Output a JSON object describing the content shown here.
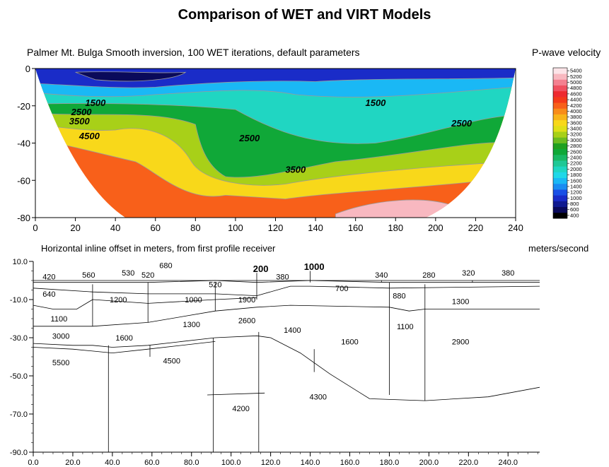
{
  "figure_title": "Comparison of WET and VIRT Models",
  "chart_data": [
    {
      "type": "heatmap",
      "title": "Palmer Mt. Bulga Smooth inversion, 100 WET iterations, default parameters",
      "xlabel": "Horizontal inline offset in meters, from first profile receiver",
      "ylabel": "",
      "xlim": [
        0,
        240
      ],
      "ylim": [
        -80,
        0
      ],
      "x_ticks": [
        "0",
        "20",
        "40",
        "60",
        "80",
        "100",
        "120",
        "140",
        "160",
        "180",
        "200",
        "220",
        "240"
      ],
      "y_ticks": [
        "0",
        "-20",
        "-40",
        "-60",
        "-80"
      ],
      "colorbar": {
        "title": "P-wave velocity",
        "unit_label": "meters/second",
        "ticks": [
          "400",
          "600",
          "800",
          "1000",
          "1200",
          "1400",
          "1600",
          "1800",
          "2000",
          "2200",
          "2400",
          "2600",
          "2800",
          "3000",
          "3200",
          "3400",
          "3600",
          "3800",
          "4000",
          "4200",
          "4400",
          "4600",
          "4800",
          "5000",
          "5200",
          "5400"
        ],
        "colors": [
          "#000000",
          "#0a0a5a",
          "#101a90",
          "#1a2cc8",
          "#1a50e6",
          "#1a8cf2",
          "#1ab8f5",
          "#20d8e8",
          "#20d6c2",
          "#20c896",
          "#1ab864",
          "#10a838",
          "#20a020",
          "#6cbc20",
          "#a8d018",
          "#e0e018",
          "#f8d81a",
          "#f8b41a",
          "#f88c1a",
          "#f8601a",
          "#f43a1a",
          "#ee2a30",
          "#f05060",
          "#f48090",
          "#f8b8c0",
          "#fce4e8"
        ]
      },
      "contour_labels": [
        {
          "text": "1500",
          "x": 30,
          "y": -20
        },
        {
          "text": "2500",
          "x": 23,
          "y": -25
        },
        {
          "text": "3500",
          "x": 22,
          "y": -30
        },
        {
          "text": "4500",
          "x": 27,
          "y": -38
        },
        {
          "text": "2500",
          "x": 107,
          "y": -39
        },
        {
          "text": "3500",
          "x": 130,
          "y": -56
        },
        {
          "text": "1500",
          "x": 170,
          "y": -20
        },
        {
          "text": "2500",
          "x": 213,
          "y": -31
        }
      ]
    },
    {
      "type": "diagram",
      "title": "",
      "xlabel": "",
      "ylabel": "",
      "xlim": [
        0,
        256
      ],
      "ylim": [
        -90,
        10
      ],
      "x_ticks": [
        "0.0",
        "20.0",
        "40.0",
        "60.0",
        "80.0",
        "100.0",
        "120.0",
        "140.0",
        "160.0",
        "180.0",
        "200.0",
        "220.0",
        "240.0"
      ],
      "y_ticks": [
        "10.0",
        "-10.0",
        "-30.0",
        "-50.0",
        "-70.0",
        "-90.0"
      ],
      "layer_labels": [
        {
          "text": "420",
          "x": 8,
          "y": 2,
          "bold": false
        },
        {
          "text": "560",
          "x": 28,
          "y": 3,
          "bold": false
        },
        {
          "text": "530",
          "x": 48,
          "y": 4,
          "bold": false
        },
        {
          "text": "520",
          "x": 58,
          "y": 3,
          "bold": false
        },
        {
          "text": "680",
          "x": 67,
          "y": 8,
          "bold": false
        },
        {
          "text": "520",
          "x": 92,
          "y": -2,
          "bold": false
        },
        {
          "text": "200",
          "x": 115,
          "y": 6,
          "bold": true
        },
        {
          "text": "380",
          "x": 126,
          "y": 2,
          "bold": false
        },
        {
          "text": "1000",
          "x": 142,
          "y": 7,
          "bold": true
        },
        {
          "text": "340",
          "x": 176,
          "y": 3,
          "bold": false
        },
        {
          "text": "280",
          "x": 200,
          "y": 3,
          "bold": false
        },
        {
          "text": "320",
          "x": 220,
          "y": 4,
          "bold": false
        },
        {
          "text": "380",
          "x": 240,
          "y": 4,
          "bold": false
        },
        {
          "text": "640",
          "x": 8,
          "y": -7,
          "bold": false
        },
        {
          "text": "1200",
          "x": 43,
          "y": -10,
          "bold": false
        },
        {
          "text": "1000",
          "x": 81,
          "y": -10,
          "bold": false
        },
        {
          "text": "1900",
          "x": 108,
          "y": -10,
          "bold": false
        },
        {
          "text": "700",
          "x": 156,
          "y": -4,
          "bold": false
        },
        {
          "text": "880",
          "x": 185,
          "y": -8,
          "bold": false
        },
        {
          "text": "1300",
          "x": 216,
          "y": -11,
          "bold": false
        },
        {
          "text": "1100",
          "x": 13,
          "y": -20,
          "bold": false
        },
        {
          "text": "1300",
          "x": 80,
          "y": -23,
          "bold": false
        },
        {
          "text": "2600",
          "x": 108,
          "y": -21,
          "bold": false
        },
        {
          "text": "1400",
          "x": 131,
          "y": -26,
          "bold": false
        },
        {
          "text": "1100",
          "x": 188,
          "y": -24,
          "bold": false
        },
        {
          "text": "3000",
          "x": 14,
          "y": -29,
          "bold": false
        },
        {
          "text": "1600",
          "x": 46,
          "y": -30,
          "bold": false
        },
        {
          "text": "1600",
          "x": 160,
          "y": -32,
          "bold": false
        },
        {
          "text": "2900",
          "x": 216,
          "y": -32,
          "bold": false
        },
        {
          "text": "5500",
          "x": 14,
          "y": -43,
          "bold": false
        },
        {
          "text": "4500",
          "x": 70,
          "y": -42,
          "bold": false
        },
        {
          "text": "4300",
          "x": 144,
          "y": -61,
          "bold": false
        },
        {
          "text": "4200",
          "x": 105,
          "y": -67,
          "bold": false
        }
      ]
    }
  ]
}
